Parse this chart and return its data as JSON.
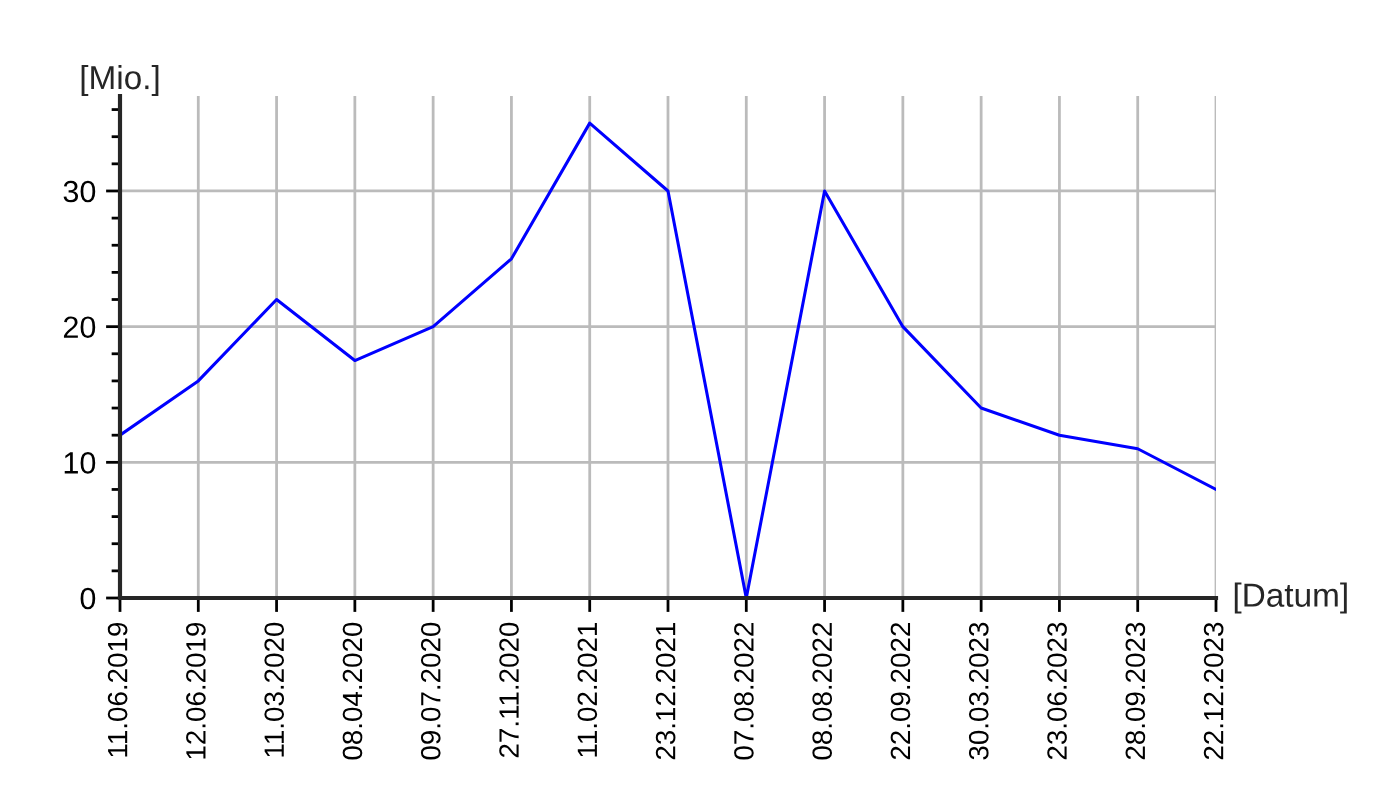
{
  "chart_data": {
    "type": "line",
    "xlabel": "[Datum]",
    "ylabel": "[Mio.]",
    "categories": [
      "11.06.2019",
      "12.06.2019",
      "11.03.2020",
      "08.04.2020",
      "09.07.2020",
      "27.11.2020",
      "11.02.2021",
      "23.12.2021",
      "07.08.2022",
      "08.08.2022",
      "22.09.2022",
      "30.03.2023",
      "23.06.2023",
      "28.09.2023",
      "22.12.2023"
    ],
    "series": [
      {
        "color": "#0000ff",
        "values": [
          12,
          16,
          22,
          17.5,
          20,
          25,
          35,
          30,
          0,
          30,
          20,
          14,
          12,
          11,
          8
        ]
      }
    ],
    "ylim": [
      0,
      37
    ],
    "yticks": [
      0,
      {
        "value": 2,
        "label": null
      },
      {
        "value": 4,
        "label": null
      },
      {
        "value": 6,
        "label": null
      },
      {
        "value": 8,
        "label": null
      },
      10,
      {
        "value": 12,
        "label": null
      },
      {
        "value": 14,
        "label": null
      },
      {
        "value": 16,
        "label": null
      },
      {
        "value": 18,
        "label": null
      },
      20,
      {
        "value": 22,
        "label": null
      },
      {
        "value": 24,
        "label": null
      },
      {
        "value": 26,
        "label": null
      },
      {
        "value": 28,
        "label": null
      },
      30,
      {
        "value": 32,
        "label": null
      },
      {
        "value": 34,
        "label": null
      },
      {
        "value": 36,
        "label": null
      }
    ],
    "grid": true,
    "marker": "none",
    "line_style": "solid"
  }
}
